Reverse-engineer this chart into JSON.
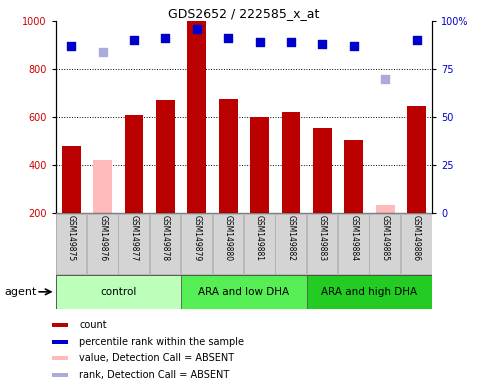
{
  "title": "GDS2652 / 222585_x_at",
  "samples": [
    "GSM149875",
    "GSM149876",
    "GSM149877",
    "GSM149878",
    "GSM149879",
    "GSM149880",
    "GSM149881",
    "GSM149882",
    "GSM149883",
    "GSM149884",
    "GSM149885",
    "GSM149886"
  ],
  "bar_values": [
    480,
    420,
    610,
    670,
    1000,
    675,
    600,
    620,
    555,
    505,
    235,
    645
  ],
  "bar_absent": [
    false,
    true,
    false,
    false,
    false,
    false,
    false,
    false,
    false,
    false,
    true,
    false
  ],
  "percentile_values": [
    87,
    84,
    90,
    91,
    96,
    91,
    89,
    89,
    88,
    87,
    70,
    90
  ],
  "percentile_absent": [
    false,
    true,
    false,
    false,
    false,
    false,
    false,
    false,
    false,
    false,
    true,
    false
  ],
  "groups": [
    {
      "label": "control",
      "start": 0,
      "end": 3,
      "color": "#bbffbb"
    },
    {
      "label": "ARA and low DHA",
      "start": 4,
      "end": 7,
      "color": "#55ee55"
    },
    {
      "label": "ARA and high DHA",
      "start": 8,
      "end": 11,
      "color": "#22cc22"
    }
  ],
  "bar_color_present": "#bb0000",
  "bar_color_absent": "#ffbbbb",
  "dot_color_present": "#0000cc",
  "dot_color_absent": "#aaaadd",
  "ylim_left": [
    200,
    1000
  ],
  "ylim_right": [
    0,
    100
  ],
  "yticks_left": [
    200,
    400,
    600,
    800,
    1000
  ],
  "yticks_right": [
    0,
    25,
    50,
    75,
    100
  ],
  "grid_values": [
    400,
    600,
    800
  ],
  "background_color": "#ffffff",
  "agent_label": "agent",
  "legend_items": [
    {
      "color": "#bb0000",
      "label": "count"
    },
    {
      "color": "#0000cc",
      "label": "percentile rank within the sample"
    },
    {
      "color": "#ffbbbb",
      "label": "value, Detection Call = ABSENT"
    },
    {
      "color": "#aaaadd",
      "label": "rank, Detection Call = ABSENT"
    }
  ]
}
